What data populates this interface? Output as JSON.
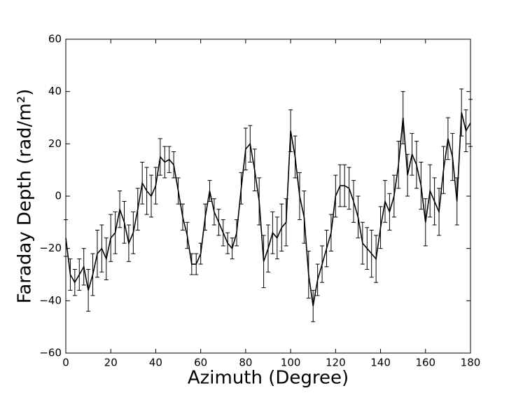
{
  "chart_data": {
    "type": "line",
    "xlabel": "Azimuth (Degree)",
    "ylabel": "Faraday Depth (rad/m²)",
    "color": "#000000",
    "x": [
      0,
      2,
      4,
      6,
      8,
      10,
      12,
      14,
      16,
      18,
      20,
      22,
      24,
      26,
      28,
      30,
      32,
      34,
      36,
      38,
      40,
      42,
      44,
      46,
      48,
      50,
      52,
      54,
      56,
      58,
      60,
      62,
      64,
      66,
      68,
      70,
      72,
      74,
      76,
      78,
      80,
      82,
      84,
      86,
      88,
      90,
      92,
      94,
      96,
      98,
      100,
      102,
      104,
      106,
      108,
      110,
      112,
      114,
      116,
      118,
      120,
      122,
      124,
      126,
      128,
      130,
      132,
      134,
      136,
      138,
      140,
      142,
      144,
      146,
      148,
      150,
      152,
      154,
      156,
      158,
      160,
      162,
      164,
      166,
      168,
      170,
      172,
      174,
      176,
      178,
      180
    ],
    "values": [
      -16,
      -30,
      -33,
      -30,
      -27,
      -36,
      -30,
      -22,
      -20,
      -24,
      -16,
      -14,
      -5,
      -10,
      -18,
      -14,
      -5,
      5,
      2,
      0,
      4,
      15,
      13,
      14,
      12,
      2,
      -8,
      -15,
      -26,
      -26,
      -22,
      -8,
      2,
      -6,
      -10,
      -14,
      -18,
      -20,
      -14,
      3,
      18,
      20,
      10,
      -2,
      -25,
      -20,
      -14,
      -16,
      -12,
      -10,
      25,
      15,
      0,
      -8,
      -30,
      -42,
      -32,
      -26,
      -20,
      -14,
      0,
      4,
      4,
      3,
      -2,
      -8,
      -18,
      -20,
      -22,
      -24,
      -12,
      -2,
      -6,
      0,
      12,
      30,
      8,
      16,
      12,
      4,
      -10,
      2,
      -2,
      -6,
      10,
      22,
      15,
      -2,
      32,
      25,
      28
    ],
    "errors": [
      7,
      6,
      5,
      6,
      7,
      8,
      8,
      9,
      9,
      8,
      9,
      8,
      7,
      8,
      7,
      8,
      8,
      8,
      9,
      8,
      7,
      7,
      6,
      5,
      5,
      5,
      5,
      5,
      4,
      4,
      4,
      5,
      4,
      5,
      5,
      5,
      4,
      4,
      5,
      6,
      8,
      7,
      8,
      9,
      10,
      9,
      8,
      8,
      9,
      9,
      8,
      8,
      9,
      10,
      9,
      6,
      6,
      7,
      7,
      7,
      8,
      8,
      8,
      8,
      8,
      8,
      8,
      8,
      9,
      9,
      8,
      8,
      7,
      8,
      9,
      10,
      8,
      8,
      9,
      9,
      9,
      10,
      9,
      9,
      9,
      8,
      9,
      9,
      9,
      8,
      9
    ],
    "xlim": [
      0,
      180
    ],
    "xticks": [
      0,
      20,
      40,
      60,
      80,
      100,
      120,
      140,
      160,
      180
    ],
    "ylim": [
      -60,
      60
    ],
    "yticks": [
      {
        "value": -60,
        "label": "−60"
      },
      {
        "value": -40,
        "label": "−40"
      },
      {
        "value": -20,
        "label": "−20"
      },
      0,
      20,
      40,
      60
    ]
  }
}
